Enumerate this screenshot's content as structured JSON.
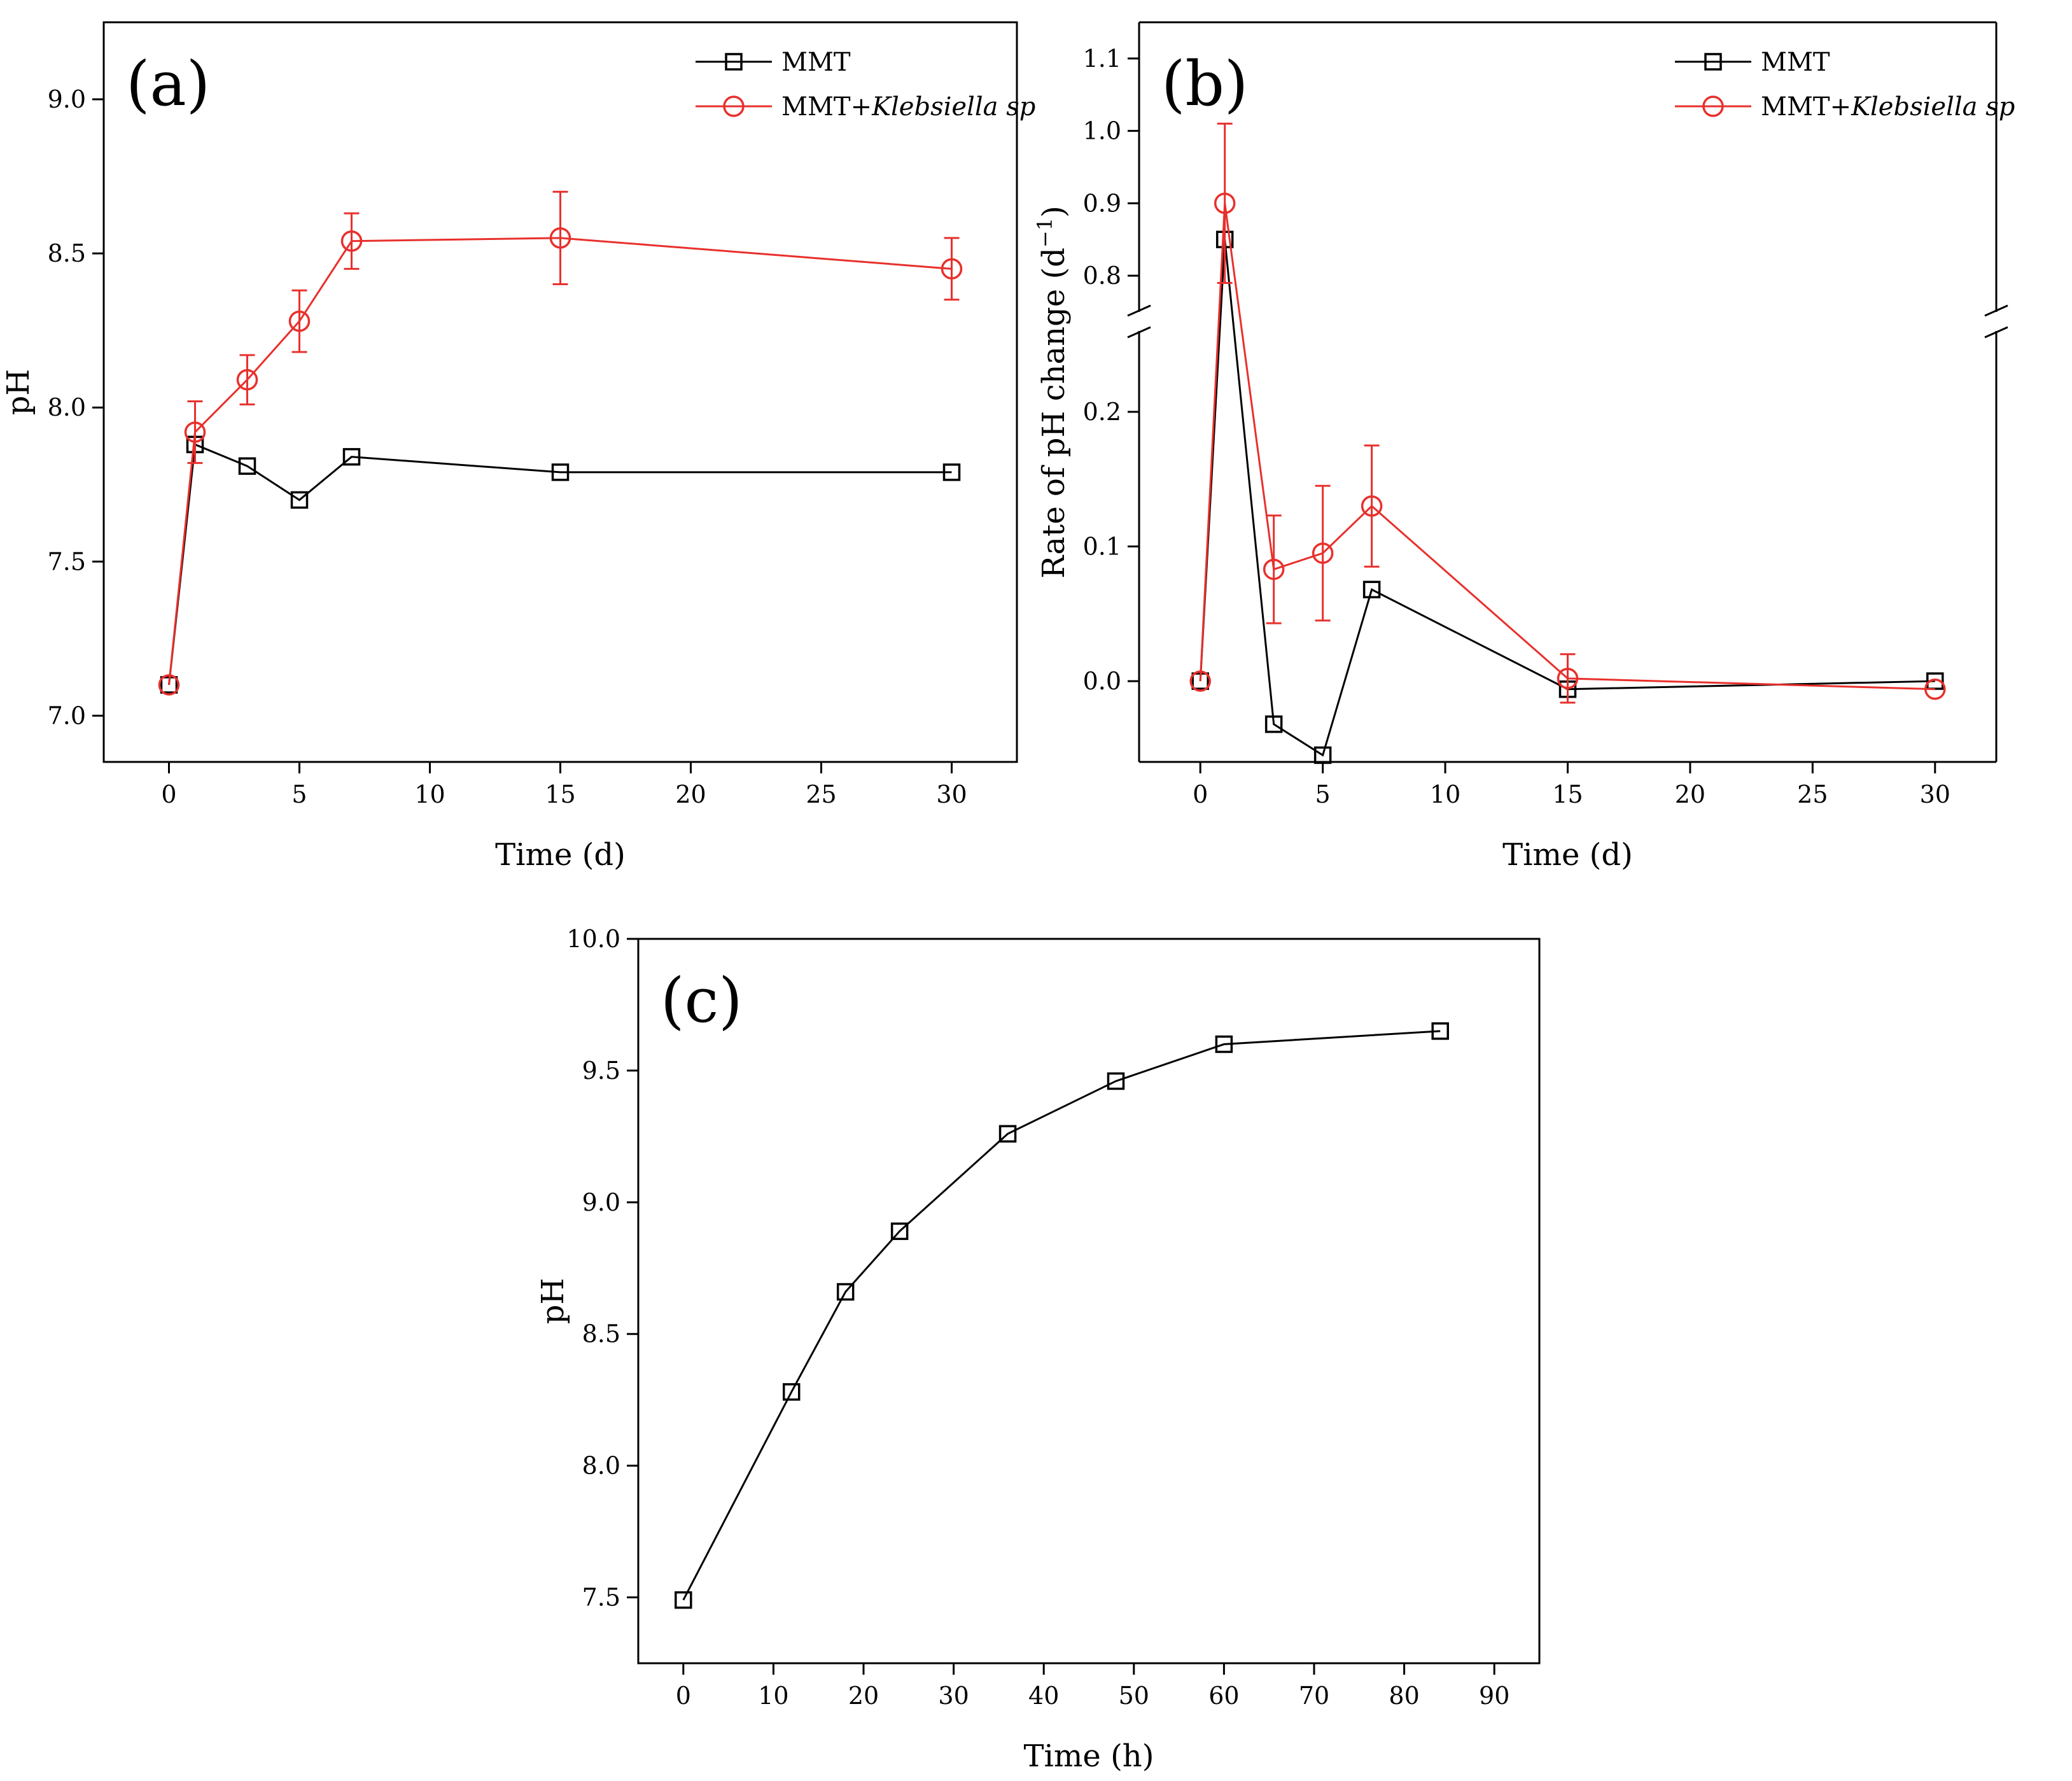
{
  "colors": {
    "black": "#000000",
    "red": "#e8302c"
  },
  "chart_data": [
    {
      "id": "a",
      "type": "line",
      "panel_label": "(a)",
      "title": "",
      "xlabel": "Time (d)",
      "ylabel": "pH",
      "xlim": [
        -2.5,
        32.5
      ],
      "ylim": [
        6.85,
        9.25
      ],
      "xticks": [
        0,
        5,
        10,
        15,
        20,
        25,
        30
      ],
      "yticks": [
        7.0,
        7.5,
        8.0,
        8.5,
        9.0
      ],
      "ytick_labels": [
        "7.0",
        "7.5",
        "8.0",
        "8.5",
        "9.0"
      ],
      "legend_position": "top-right",
      "series": [
        {
          "name": "MMT",
          "name_suffix": "",
          "marker": "square",
          "color": "#000000",
          "x": [
            0,
            1,
            3,
            5,
            7,
            15,
            30
          ],
          "y": [
            7.1,
            7.88,
            7.81,
            7.7,
            7.84,
            7.79,
            7.79
          ]
        },
        {
          "name": "MMT+",
          "name_suffix": "Klebsiella sp",
          "marker": "circle",
          "color": "#e8302c",
          "x": [
            0,
            1,
            3,
            5,
            7,
            15,
            30
          ],
          "y": [
            7.1,
            7.92,
            8.09,
            8.28,
            8.54,
            8.55,
            8.45
          ],
          "err": [
            0,
            0.1,
            0.08,
            0.1,
            0.09,
            0.15,
            0.1
          ]
        }
      ]
    },
    {
      "id": "b",
      "type": "line",
      "panel_label": "(b)",
      "title": "",
      "xlabel": "Time (d)",
      "ylabel": "Rate of pH change (d",
      "ylabel_sup": "−1",
      "ylabel_tail": ")",
      "xlim": [
        -2.5,
        32.5
      ],
      "ylim_lower": [
        -0.06,
        0.26
      ],
      "ylim_upper": [
        0.75,
        1.15
      ],
      "axis_break": true,
      "xticks": [
        0,
        5,
        10,
        15,
        20,
        25,
        30
      ],
      "yticks_lower": [
        0.0,
        0.1,
        0.2
      ],
      "ytick_labels_lower": [
        "0.0",
        "0.1",
        "0.2"
      ],
      "yticks_upper": [
        0.8,
        0.9,
        1.0,
        1.1
      ],
      "ytick_labels_upper": [
        "0.8",
        "0.9",
        "1.0",
        "1.1"
      ],
      "legend_position": "top-right",
      "series": [
        {
          "name": "MMT",
          "name_suffix": "",
          "marker": "square",
          "color": "#000000",
          "x": [
            0,
            1,
            3,
            5,
            7,
            15,
            30
          ],
          "y": [
            0.0,
            0.85,
            -0.032,
            -0.055,
            0.068,
            -0.006,
            0.0
          ]
        },
        {
          "name": "MMT+",
          "name_suffix": "Klebsiella sp",
          "marker": "circle",
          "color": "#e8302c",
          "x": [
            0,
            1,
            3,
            5,
            7,
            15,
            30
          ],
          "y": [
            0.0,
            0.9,
            0.083,
            0.095,
            0.13,
            0.002,
            -0.006
          ],
          "err": [
            0,
            0.11,
            0.04,
            0.05,
            0.045,
            0.018,
            0
          ]
        }
      ]
    },
    {
      "id": "c",
      "type": "line",
      "panel_label": "(c)",
      "title": "",
      "xlabel": "Time (h)",
      "ylabel": "pH",
      "xlim": [
        -5,
        95
      ],
      "ylim": [
        7.25,
        10.0
      ],
      "xticks": [
        0,
        10,
        20,
        30,
        40,
        50,
        60,
        70,
        80,
        90
      ],
      "yticks": [
        7.5,
        8.0,
        8.5,
        9.0,
        9.5,
        10.0
      ],
      "ytick_labels": [
        "7.5",
        "8.0",
        "8.5",
        "9.0",
        "9.5",
        "10.0"
      ],
      "series": [
        {
          "name": "pH",
          "marker": "square",
          "color": "#000000",
          "x": [
            0,
            12,
            18,
            24,
            36,
            48,
            60,
            84
          ],
          "y": [
            7.49,
            8.28,
            8.66,
            8.89,
            9.26,
            9.46,
            9.6,
            9.65
          ]
        }
      ]
    }
  ]
}
